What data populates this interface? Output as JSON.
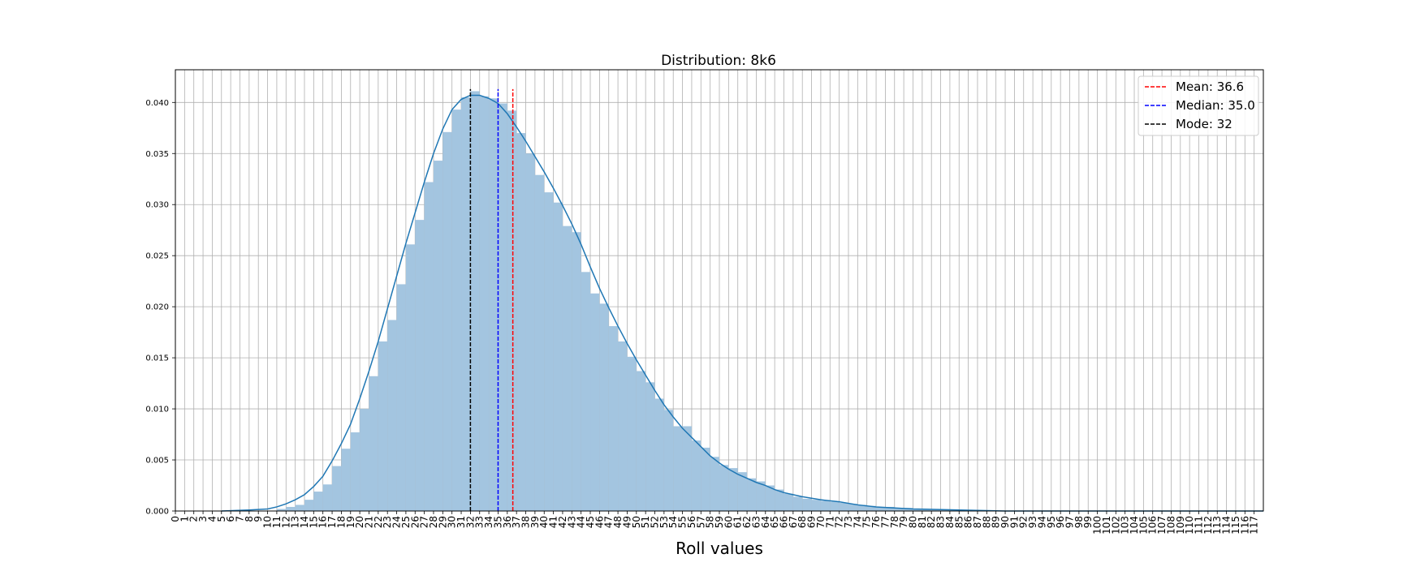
{
  "chart_data": {
    "type": "bar",
    "title": "Distribution: 8k6",
    "xlabel": "Roll values",
    "ylabel": "",
    "xlim": [
      0,
      118
    ],
    "ylim": [
      0,
      0.0432
    ],
    "yticks": [
      "0.000",
      "0.005",
      "0.010",
      "0.015",
      "0.020",
      "0.025",
      "0.030",
      "0.035",
      "0.040"
    ],
    "grid": true,
    "legend_position": "top-right",
    "hist_color": "#a3c5e0",
    "kde_color": "#1f77b4",
    "bins": {
      "start": [
        11,
        12,
        13,
        14,
        15,
        16,
        17,
        18,
        19,
        20,
        21,
        22,
        23,
        24,
        25,
        26,
        27,
        28,
        29,
        30,
        31,
        32,
        33,
        34,
        35,
        36,
        37,
        38,
        39,
        40,
        41,
        42,
        43,
        44,
        45,
        46,
        47,
        48,
        49,
        50,
        51,
        52,
        53,
        54,
        55,
        56,
        57,
        58,
        59,
        60,
        61,
        62,
        63,
        64,
        65,
        66,
        67,
        68,
        69,
        70,
        71,
        72,
        73,
        74,
        75,
        76,
        77,
        78,
        79,
        80,
        81,
        82,
        83,
        84,
        85
      ],
      "density": [
        0.0002,
        0.0004,
        0.0006,
        0.0011,
        0.0019,
        0.0026,
        0.0044,
        0.0061,
        0.0077,
        0.01,
        0.0132,
        0.0166,
        0.0187,
        0.0222,
        0.0261,
        0.0285,
        0.0322,
        0.0343,
        0.0371,
        0.0393,
        0.0405,
        0.0411,
        0.0406,
        0.0404,
        0.0399,
        0.0392,
        0.037,
        0.035,
        0.0329,
        0.0312,
        0.0302,
        0.0279,
        0.0273,
        0.0234,
        0.0213,
        0.0203,
        0.0181,
        0.0166,
        0.0151,
        0.0137,
        0.0126,
        0.011,
        0.0099,
        0.0083,
        0.0083,
        0.0069,
        0.0062,
        0.0053,
        0.0045,
        0.0042,
        0.0038,
        0.0032,
        0.0029,
        0.0025,
        0.0021,
        0.0017,
        0.0014,
        0.0012,
        0.0011,
        0.001,
        0.0009,
        0.0008,
        0.0007,
        0.0006,
        0.0005,
        0.0004,
        0.0004,
        0.0003,
        0.0003,
        0.0002,
        0.0002,
        0.0002,
        0.0001,
        0.0001,
        0.0001
      ]
    },
    "kde": {
      "x": [
        5,
        8,
        10,
        11,
        12,
        13,
        14,
        15,
        16,
        17,
        18,
        19,
        20,
        21,
        22,
        23,
        24,
        25,
        26,
        27,
        28,
        29,
        30,
        31,
        32,
        33,
        34,
        35,
        36,
        37,
        38,
        39,
        40,
        41,
        42,
        43,
        44,
        45,
        46,
        47,
        48,
        49,
        50,
        51,
        52,
        53,
        54,
        55,
        56,
        57,
        58,
        59,
        60,
        61,
        62,
        63,
        64,
        65,
        66,
        67,
        68,
        70,
        72,
        74,
        76,
        78,
        80,
        85,
        90,
        95,
        100,
        105,
        110,
        118
      ],
      "y": [
        0.0,
        0.0001,
        0.0002,
        0.0004,
        0.0007,
        0.0011,
        0.0016,
        0.0024,
        0.0034,
        0.0049,
        0.0066,
        0.0085,
        0.011,
        0.0137,
        0.0166,
        0.0198,
        0.023,
        0.0262,
        0.0292,
        0.0322,
        0.035,
        0.0374,
        0.0393,
        0.0403,
        0.0407,
        0.0407,
        0.0404,
        0.0399,
        0.0389,
        0.0376,
        0.0362,
        0.0347,
        0.0332,
        0.0316,
        0.0299,
        0.0281,
        0.0261,
        0.0239,
        0.0218,
        0.0199,
        0.0181,
        0.0164,
        0.0148,
        0.0133,
        0.0118,
        0.0104,
        0.0092,
        0.0081,
        0.0072,
        0.0063,
        0.0054,
        0.0047,
        0.0041,
        0.0036,
        0.0032,
        0.0028,
        0.0025,
        0.0021,
        0.0018,
        0.0016,
        0.0014,
        0.0011,
        0.0009,
        0.0006,
        0.0004,
        0.0003,
        0.0002,
        0.0001,
        0.0,
        0.0,
        0.0,
        0.0,
        0.0,
        0.0
      ]
    },
    "lines": [
      {
        "name": "Mean",
        "label": "Mean: 36.6",
        "x": 36.6,
        "ymax": 0.0413,
        "color": "#ff0000"
      },
      {
        "name": "Median",
        "label": "Median: 35.0",
        "x": 35.0,
        "ymax": 0.0413,
        "color": "#0000ff"
      },
      {
        "name": "Mode",
        "label": "Mode: 32",
        "x": 32.0,
        "ymax": 0.0413,
        "color": "#000000"
      }
    ]
  }
}
